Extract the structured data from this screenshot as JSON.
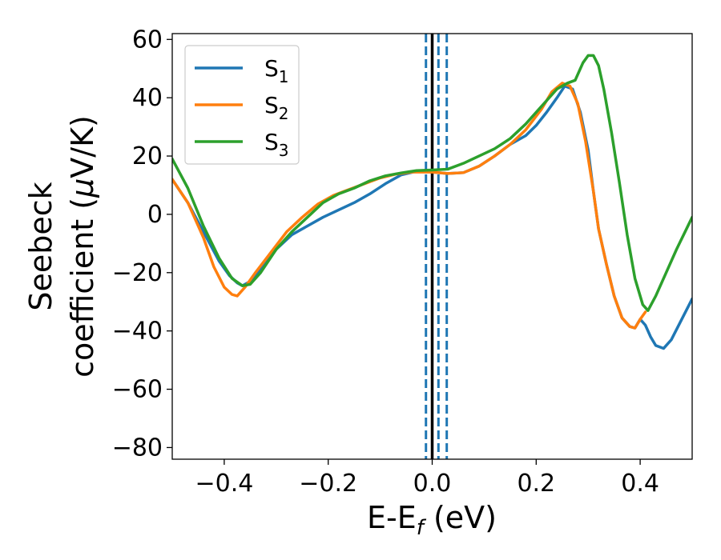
{
  "chart_data": {
    "type": "line",
    "title": "",
    "xlabel": {
      "main": "E-E",
      "sub": "f",
      "suffix": " (eV)"
    },
    "ylabel": {
      "line1": "Seebeck",
      "line2": "coefficient  (",
      "mu": "μ",
      "line2_end": "V/K)"
    },
    "xlim": [
      -0.5,
      0.5
    ],
    "ylim": [
      -84,
      62
    ],
    "xticks": [
      -0.4,
      -0.2,
      0.0,
      0.2,
      0.4
    ],
    "xtick_labels": [
      "−0.4",
      "−0.2",
      "0.0",
      "0.2",
      "0.4"
    ],
    "yticks": [
      60,
      40,
      20,
      0,
      -20,
      -40,
      -60,
      -80
    ],
    "ytick_labels": [
      "60",
      "40",
      "20",
      "0",
      "−20",
      "−40",
      "−60",
      "−80"
    ],
    "grid": false,
    "legend_position": "top-left",
    "vertical_lines": [
      {
        "x": 0.0,
        "style": "solid",
        "color": "#000000"
      },
      {
        "x": -0.012,
        "style": "dashed",
        "color": "#1f77b4"
      },
      {
        "x": 0.012,
        "style": "dashed",
        "color": "#1f77b4"
      },
      {
        "x": 0.028,
        "style": "dashed",
        "color": "#1f77b4"
      }
    ],
    "series": [
      {
        "name": "S",
        "sub": "1",
        "color": "#1f77b4",
        "points": [
          [
            -0.5,
            12
          ],
          [
            -0.47,
            4
          ],
          [
            -0.44,
            -6
          ],
          [
            -0.41,
            -16
          ],
          [
            -0.39,
            -21
          ],
          [
            -0.375,
            -23.5
          ],
          [
            -0.365,
            -24.5
          ],
          [
            -0.35,
            -23
          ],
          [
            -0.33,
            -19
          ],
          [
            -0.3,
            -12
          ],
          [
            -0.27,
            -7
          ],
          [
            -0.24,
            -4
          ],
          [
            -0.21,
            -1
          ],
          [
            -0.18,
            1.5
          ],
          [
            -0.15,
            4
          ],
          [
            -0.12,
            7
          ],
          [
            -0.09,
            10.5
          ],
          [
            -0.06,
            13.5
          ],
          [
            -0.03,
            14.8
          ],
          [
            0.0,
            14.5
          ],
          [
            0.03,
            14
          ],
          [
            0.06,
            14.3
          ],
          [
            0.09,
            16.5
          ],
          [
            0.12,
            20
          ],
          [
            0.15,
            24
          ],
          [
            0.18,
            27
          ],
          [
            0.2,
            30.5
          ],
          [
            0.22,
            35
          ],
          [
            0.24,
            40
          ],
          [
            0.255,
            44
          ],
          [
            0.27,
            43
          ],
          [
            0.285,
            35
          ],
          [
            0.3,
            22
          ],
          [
            0.31,
            8
          ],
          [
            0.32,
            -5
          ],
          [
            0.335,
            -17
          ],
          [
            0.35,
            -28
          ],
          [
            0.365,
            -35.5
          ],
          [
            0.38,
            -38.5
          ],
          [
            0.39,
            -39
          ],
          [
            0.4,
            -36
          ],
          [
            0.41,
            -38
          ],
          [
            0.42,
            -42
          ],
          [
            0.43,
            -45
          ],
          [
            0.445,
            -46
          ],
          [
            0.46,
            -43
          ],
          [
            0.48,
            -36
          ],
          [
            0.5,
            -29
          ]
        ]
      },
      {
        "name": "S",
        "sub": "2",
        "color": "#ff7f0e",
        "points": [
          [
            -0.5,
            12
          ],
          [
            -0.47,
            4
          ],
          [
            -0.44,
            -8
          ],
          [
            -0.42,
            -18
          ],
          [
            -0.4,
            -25
          ],
          [
            -0.385,
            -27.5
          ],
          [
            -0.375,
            -28
          ],
          [
            -0.36,
            -25
          ],
          [
            -0.34,
            -20
          ],
          [
            -0.31,
            -13
          ],
          [
            -0.28,
            -6
          ],
          [
            -0.25,
            -1
          ],
          [
            -0.22,
            3.5
          ],
          [
            -0.19,
            6.5
          ],
          [
            -0.16,
            8.5
          ],
          [
            -0.13,
            10.5
          ],
          [
            -0.1,
            12.5
          ],
          [
            -0.07,
            13.8
          ],
          [
            -0.04,
            14.5
          ],
          [
            0.0,
            14.5
          ],
          [
            0.03,
            14
          ],
          [
            0.06,
            14.3
          ],
          [
            0.09,
            16.5
          ],
          [
            0.12,
            20
          ],
          [
            0.15,
            24
          ],
          [
            0.18,
            29
          ],
          [
            0.21,
            36
          ],
          [
            0.23,
            42
          ],
          [
            0.25,
            45
          ],
          [
            0.265,
            44
          ],
          [
            0.28,
            38
          ],
          [
            0.295,
            25
          ],
          [
            0.31,
            8
          ],
          [
            0.32,
            -5
          ],
          [
            0.335,
            -17
          ],
          [
            0.35,
            -28
          ],
          [
            0.365,
            -35.5
          ],
          [
            0.38,
            -38.5
          ],
          [
            0.39,
            -39
          ],
          [
            0.4,
            -36
          ],
          [
            0.41,
            -33.5
          ]
        ]
      },
      {
        "name": "S",
        "sub": "3",
        "color": "#2ca02c",
        "points": [
          [
            -0.5,
            19
          ],
          [
            -0.47,
            9
          ],
          [
            -0.44,
            -4
          ],
          [
            -0.41,
            -15
          ],
          [
            -0.385,
            -22
          ],
          [
            -0.365,
            -24.5
          ],
          [
            -0.35,
            -24
          ],
          [
            -0.33,
            -20
          ],
          [
            -0.3,
            -12
          ],
          [
            -0.27,
            -6
          ],
          [
            -0.24,
            -1
          ],
          [
            -0.21,
            4
          ],
          [
            -0.18,
            7
          ],
          [
            -0.15,
            9
          ],
          [
            -0.12,
            11.5
          ],
          [
            -0.09,
            13.2
          ],
          [
            -0.06,
            14.2
          ],
          [
            -0.03,
            15
          ],
          [
            0.0,
            15.2
          ],
          [
            0.03,
            15.5
          ],
          [
            0.06,
            17.5
          ],
          [
            0.09,
            20
          ],
          [
            0.12,
            22.5
          ],
          [
            0.15,
            26
          ],
          [
            0.18,
            31
          ],
          [
            0.21,
            37
          ],
          [
            0.24,
            43
          ],
          [
            0.26,
            45
          ],
          [
            0.275,
            46
          ],
          [
            0.29,
            52
          ],
          [
            0.3,
            54.5
          ],
          [
            0.31,
            54.5
          ],
          [
            0.32,
            51
          ],
          [
            0.33,
            43
          ],
          [
            0.345,
            28
          ],
          [
            0.36,
            11
          ],
          [
            0.375,
            -7
          ],
          [
            0.39,
            -22
          ],
          [
            0.405,
            -31
          ],
          [
            0.415,
            -33
          ],
          [
            0.43,
            -28
          ],
          [
            0.45,
            -20
          ],
          [
            0.47,
            -12
          ],
          [
            0.5,
            -1
          ]
        ]
      }
    ]
  }
}
